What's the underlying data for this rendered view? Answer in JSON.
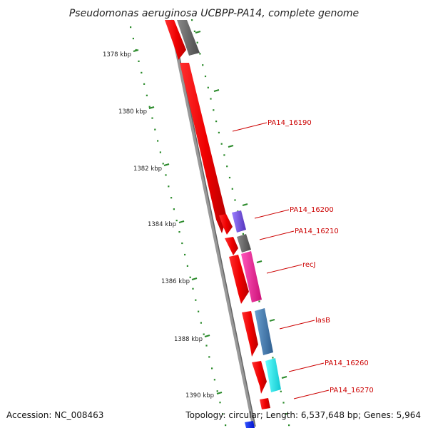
{
  "title": "Pseudomonas aeruginosa UCBPP-PA14, complete genome",
  "footer": {
    "accession": "Accession: NC_008463",
    "stats": "Topology: circular; Length: 6,537,648 bp; Genes: 5,964"
  },
  "map": {
    "kbp_ticks": [
      "1378 kbp",
      "1380 kbp",
      "1382 kbp",
      "1384 kbp",
      "1386 kbp",
      "1388 kbp",
      "1390 kbp"
    ],
    "colors": {
      "backbone": "#888888",
      "forward_gene": "#ff0000",
      "tick": "#2a8a2a",
      "label": "#cc0000",
      "gray_track": "#666666",
      "violet_track": "#7755dd",
      "pink_track": "#ee3399",
      "steel_track": "#4a7fb0",
      "cyan_track": "#22e0e6",
      "blue_track": "#1133ee"
    },
    "gene_labels": [
      "PA14_16190",
      "PA14_16200",
      "PA14_16210",
      "recJ",
      "lasB",
      "PA14_16260",
      "PA14_16270"
    ]
  }
}
